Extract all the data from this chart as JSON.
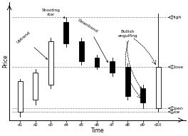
{
  "xlabel": "Time",
  "ylabel": "Price",
  "candles": [
    {
      "day": "d1",
      "x": 1,
      "open": 1.2,
      "close": 3.8,
      "high": 4.0,
      "low": 0.8,
      "bullish": true
    },
    {
      "day": "d2",
      "x": 2,
      "open": 2.2,
      "close": 4.5,
      "high": 4.8,
      "low": 1.8,
      "bullish": true
    },
    {
      "day": "d3",
      "x": 3,
      "open": 3.5,
      "close": 7.2,
      "high": 7.5,
      "low": 3.2,
      "bullish": true
    },
    {
      "day": "d4",
      "x": 4,
      "open": 8.8,
      "close": 7.0,
      "high": 9.2,
      "low": 6.7,
      "bullish": false
    },
    {
      "day": "d5",
      "x": 5,
      "open": 7.2,
      "close": 5.5,
      "high": 7.5,
      "low": 5.2,
      "bullish": false
    },
    {
      "day": "d6",
      "x": 6,
      "open": 5.8,
      "close": 5.0,
      "high": 6.0,
      "low": 4.8,
      "bullish": false
    },
    {
      "day": "d7",
      "x": 7,
      "open": 5.5,
      "close": 4.5,
      "high": 5.8,
      "low": 4.2,
      "bullish": false
    },
    {
      "day": "d8",
      "x": 8,
      "open": 5.0,
      "close": 2.5,
      "high": 5.3,
      "low": 2.2,
      "bullish": false
    },
    {
      "day": "d9",
      "x": 9,
      "open": 3.2,
      "close": 2.0,
      "high": 3.5,
      "low": 1.5,
      "bullish": false
    },
    {
      "day": "d10",
      "x": 10,
      "open": 1.5,
      "close": 5.0,
      "high": 9.5,
      "low": 1.2,
      "bullish": true
    }
  ],
  "high_y": 9.2,
  "close_y": 5.0,
  "open_y": 1.5,
  "low_y": 1.2,
  "bg_color": "#ffffff",
  "bullish_color": "#ffffff",
  "bearish_color": "#000000",
  "edge_color": "#000000",
  "bar_width": 0.32,
  "ylim": [
    0.5,
    10.5
  ],
  "xlim": [
    0.3,
    11.8
  ]
}
